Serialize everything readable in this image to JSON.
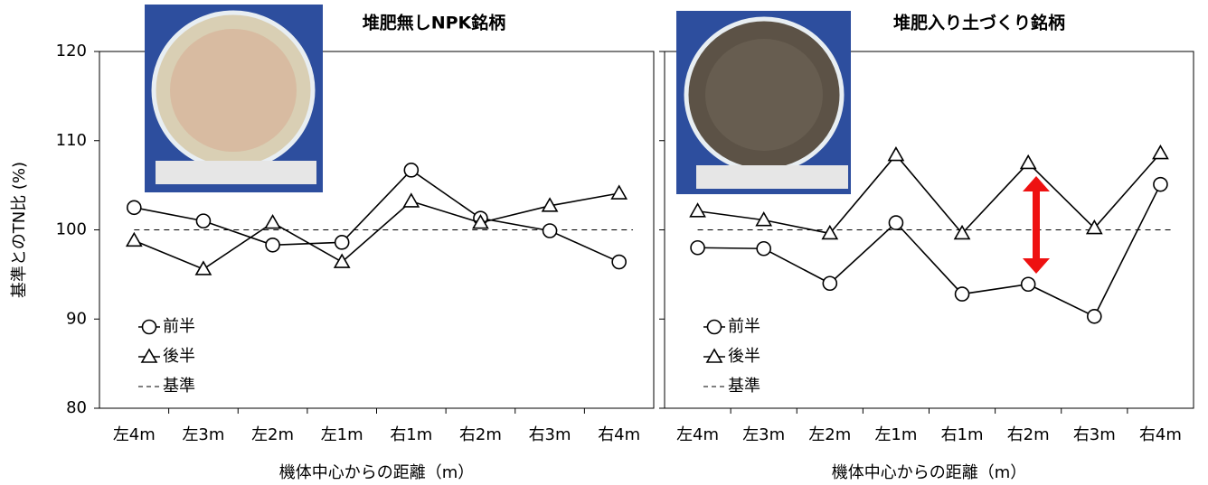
{
  "chart_data": [
    {
      "type": "line",
      "title": "堆肥無しNPK銘柄",
      "y_label": "基準とのTN比 (%)",
      "x_label": "機体中心からの距離（m）",
      "categories": [
        "左4m",
        "左3m",
        "左2m",
        "左1m",
        "右1m",
        "右2m",
        "右3m",
        "右4m"
      ],
      "series": [
        {
          "name": "前半",
          "marker": "circle",
          "color": "#000000",
          "values": [
            102.5,
            101.0,
            98.3,
            98.6,
            106.7,
            101.3,
            99.9,
            96.4
          ]
        },
        {
          "name": "後半",
          "marker": "triangle",
          "color": "#000000",
          "values": [
            98.8,
            95.6,
            100.8,
            96.4,
            103.2,
            100.8,
            102.7,
            104.1
          ]
        }
      ],
      "reference": {
        "name": "基準",
        "value": 100
      },
      "ylim": [
        80,
        120
      ],
      "yticks": [
        80,
        90,
        100,
        110,
        120
      ],
      "ytick_labels": true
    },
    {
      "type": "line",
      "title": "堆肥入り土づくり銘柄",
      "x_label": "機体中心からの距離（m）",
      "categories": [
        "左4m",
        "左3m",
        "左2m",
        "左1m",
        "右1m",
        "右2m",
        "右3m",
        "右4m"
      ],
      "series": [
        {
          "name": "前半",
          "marker": "circle",
          "color": "#000000",
          "values": [
            98.0,
            97.9,
            94.0,
            100.8,
            92.8,
            93.9,
            90.3,
            105.1
          ]
        },
        {
          "name": "後半",
          "marker": "triangle",
          "color": "#000000",
          "values": [
            102.1,
            101.1,
            99.6,
            108.4,
            99.6,
            107.5,
            100.2,
            108.6
          ]
        }
      ],
      "reference": {
        "name": "基準",
        "value": 100
      },
      "ylim": [
        80,
        120
      ],
      "yticks": [
        80,
        90,
        100,
        110,
        120
      ],
      "ytick_labels": false
    }
  ]
}
